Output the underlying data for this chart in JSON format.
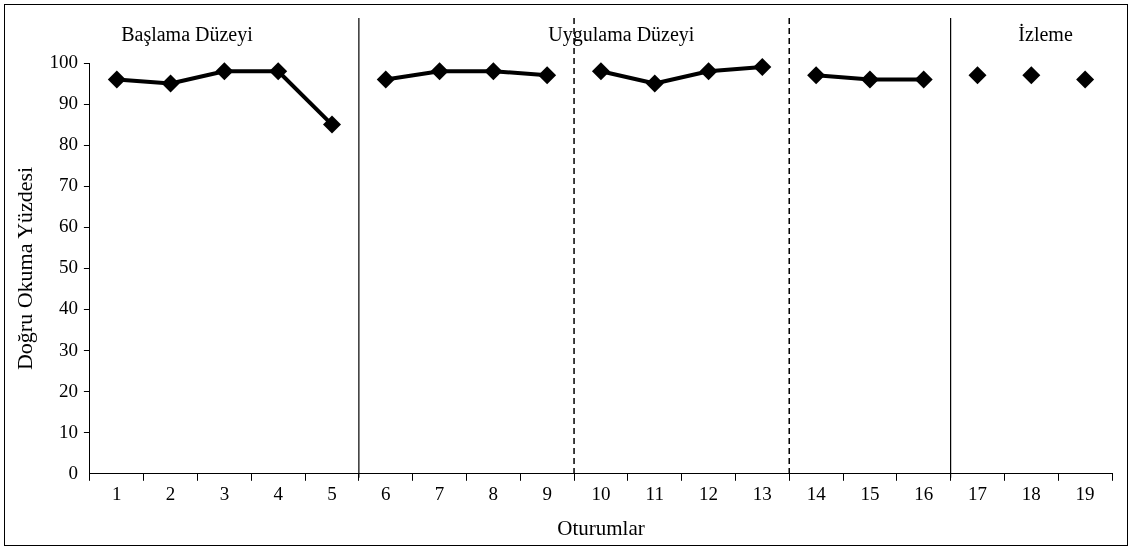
{
  "chart_data": {
    "type": "line",
    "xlabel": "Oturumlar",
    "ylabel": "Doğru Okuma Yüzdesi",
    "xlim": [
      0.5,
      19.5
    ],
    "xticks": [
      {
        "value": 0.5,
        "label": null
      },
      1,
      {
        "value": 1.5,
        "label": null
      },
      2,
      {
        "value": 2.5,
        "label": null
      },
      3,
      {
        "value": 3.5,
        "label": null
      },
      4,
      {
        "value": 4.5,
        "label": null
      },
      5,
      {
        "value": 5.5,
        "label": null
      },
      6,
      {
        "value": 6.5,
        "label": null
      },
      7,
      {
        "value": 7.5,
        "label": null
      },
      8,
      {
        "value": 8.5,
        "label": null
      },
      9,
      {
        "value": 9.5,
        "label": null
      },
      10,
      {
        "value": 10.5,
        "label": null
      },
      11,
      {
        "value": 11.5,
        "label": null
      },
      12,
      {
        "value": 12.5,
        "label": null
      },
      13,
      {
        "value": 13.5,
        "label": null
      },
      14,
      {
        "value": 14.5,
        "label": null
      },
      15,
      {
        "value": 15.5,
        "label": null
      },
      16,
      {
        "value": 16.5,
        "label": null
      },
      17,
      {
        "value": 17.5,
        "label": null
      },
      18,
      {
        "value": 18.5,
        "label": null
      },
      19,
      {
        "value": 19.5,
        "label": null
      }
    ],
    "ylim": [
      0,
      100
    ],
    "yticks": [
      0,
      10,
      20,
      30,
      40,
      50,
      60,
      70,
      80,
      90,
      100
    ],
    "marker": "diamond",
    "line_style": "solid",
    "grid": false,
    "legend": false,
    "series": [
      {
        "color": "#000000",
        "x": [
          1,
          2,
          3,
          4,
          5
        ],
        "values": [
          96,
          95,
          98,
          98,
          85
        ]
      },
      {
        "color": "#000000",
        "x": [
          6,
          7,
          8,
          9
        ],
        "values": [
          96,
          98,
          98,
          97
        ]
      },
      {
        "color": "#000000",
        "x": [
          10,
          11,
          12,
          13
        ],
        "values": [
          98,
          95,
          98,
          99
        ]
      },
      {
        "color": "#000000",
        "x": [
          14,
          15,
          16
        ],
        "values": [
          97,
          96,
          96
        ]
      },
      {
        "type": "scatter",
        "color": "#000000",
        "x": [
          17,
          18,
          19
        ],
        "values": [
          97,
          97,
          96
        ]
      }
    ],
    "ref_lines": [
      {
        "axis": "x",
        "value": 5.5,
        "color": "#000000",
        "line_style": "solid"
      },
      {
        "axis": "x",
        "value": 9.5,
        "color": "#000000",
        "line_style": "dashed"
      },
      {
        "axis": "x",
        "value": 13.5,
        "color": "#000000",
        "line_style": "dashed"
      },
      {
        "axis": "x",
        "value": 16.5,
        "color": "#000000",
        "line_style": "solid"
      }
    ],
    "annotations": [
      "Başlama Düzeyi",
      "Uygulama Düzeyi",
      "İzleme"
    ]
  }
}
